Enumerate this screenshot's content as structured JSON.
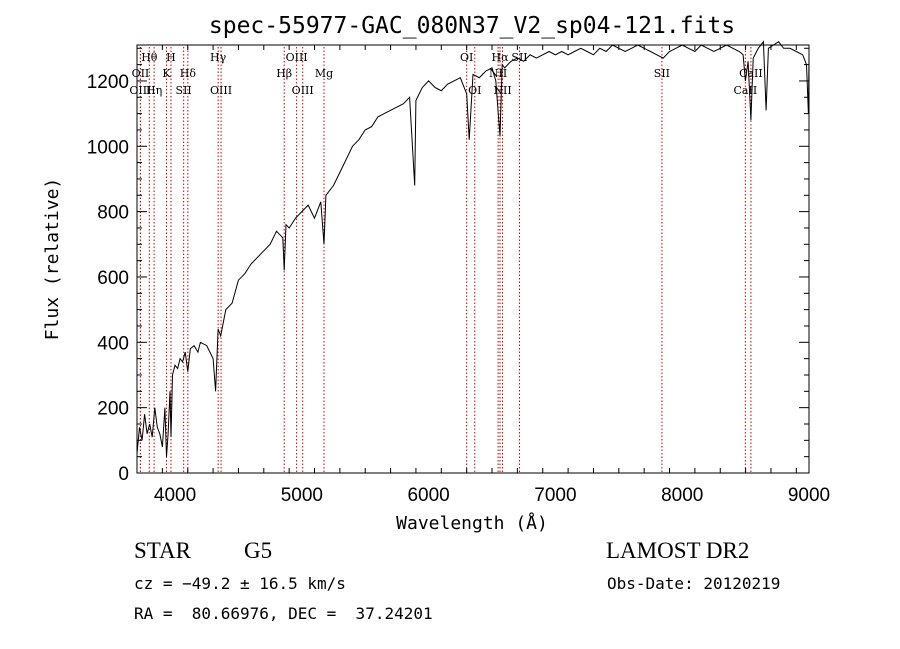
{
  "chart_data": {
    "type": "line",
    "title": "spec-55977-GAC_080N37_V2_sp04-121.fits",
    "xlabel": "Wavelength (Å)",
    "ylabel": "Flux (relative)",
    "xlim": [
      3700,
      9000
    ],
    "ylim": [
      0,
      1310
    ],
    "x_ticks": [
      4000,
      5000,
      6000,
      7000,
      8000,
      9000
    ],
    "y_ticks": [
      0,
      200,
      400,
      600,
      800,
      1000,
      1200
    ],
    "x_minor_step": 200,
    "y_minor_step": 50,
    "grid": false,
    "legend": "none",
    "series": [
      {
        "x": [
          3700,
          3720,
          3740,
          3760,
          3780,
          3800,
          3820,
          3840,
          3860,
          3880,
          3900,
          3920,
          3933,
          3945,
          3960,
          3968,
          3980,
          4000,
          4020,
          4040,
          4060,
          4080,
          4101,
          4120,
          4150,
          4180,
          4200,
          4250,
          4300,
          4320,
          4340,
          4360,
          4400,
          4450,
          4500,
          4550,
          4600,
          4650,
          4700,
          4750,
          4800,
          4850,
          4861,
          4875,
          4900,
          4950,
          5000,
          5050,
          5100,
          5150,
          5175,
          5190,
          5250,
          5300,
          5350,
          5400,
          5450,
          5500,
          5550,
          5600,
          5650,
          5700,
          5750,
          5800,
          5850,
          5890,
          5900,
          5950,
          6000,
          6050,
          6100,
          6150,
          6200,
          6250,
          6300,
          6320,
          6350,
          6400,
          6450,
          6500,
          6530,
          6563,
          6580,
          6600,
          6650,
          6700,
          6750,
          6800,
          6850,
          6900,
          6950,
          7000,
          7050,
          7100,
          7150,
          7200,
          7250,
          7300,
          7350,
          7400,
          7450,
          7500,
          7550,
          7600,
          7650,
          7700,
          7750,
          7800,
          7850,
          7900,
          7950,
          8000,
          8050,
          8100,
          8150,
          8200,
          8250,
          8300,
          8350,
          8400,
          8450,
          8480,
          8498,
          8520,
          8542,
          8560,
          8600,
          8640,
          8662,
          8680,
          8720,
          8760,
          8800,
          8850,
          8900,
          8950,
          8980,
          8995,
          9000
        ],
        "y": [
          60,
          140,
          100,
          180,
          120,
          150,
          110,
          200,
          140,
          120,
          80,
          200,
          50,
          120,
          250,
          110,
          300,
          330,
          320,
          350,
          340,
          370,
          310,
          380,
          390,
          370,
          400,
          390,
          350,
          250,
          440,
          420,
          500,
          520,
          590,
          610,
          640,
          660,
          680,
          700,
          740,
          720,
          620,
          760,
          750,
          780,
          800,
          820,
          780,
          830,
          700,
          850,
          880,
          920,
          960,
          1000,
          1020,
          1050,
          1060,
          1090,
          1100,
          1110,
          1120,
          1130,
          1150,
          880,
          1140,
          1180,
          1200,
          1180,
          1170,
          1190,
          1200,
          1210,
          1160,
          1020,
          1220,
          1210,
          1230,
          1240,
          1200,
          1030,
          1250,
          1240,
          1260,
          1270,
          1260,
          1280,
          1270,
          1280,
          1290,
          1280,
          1290,
          1280,
          1290,
          1300,
          1290,
          1280,
          1300,
          1290,
          1310,
          1300,
          1290,
          1300,
          1310,
          1300,
          1290,
          1280,
          1270,
          1290,
          1300,
          1310,
          1300,
          1290,
          1310,
          1300,
          1290,
          1300,
          1310,
          1300,
          1290,
          1280,
          1200,
          1260,
          1080,
          1270,
          1300,
          1320,
          1110,
          1300,
          1310,
          1320,
          1300,
          1300,
          1290,
          1280,
          1250,
          1100,
          1270
        ]
      }
    ],
    "line_markers": [
      {
        "x": 3797,
        "label": "Hθ",
        "row": 1
      },
      {
        "x": 3835,
        "label": "Hη",
        "row": 3
      },
      {
        "x": 3727,
        "label": "OII",
        "row": 2
      },
      {
        "x": 3727,
        "label": "OIII",
        "row": 3
      },
      {
        "x": 3933,
        "label": "K",
        "row": 2
      },
      {
        "x": 3968,
        "label": "H",
        "row": 1
      },
      {
        "x": 4068,
        "label": "SII",
        "row": 3
      },
      {
        "x": 4101,
        "label": "Hδ",
        "row": 2
      },
      {
        "x": 4340,
        "label": "Hγ",
        "row": 1
      },
      {
        "x": 4363,
        "label": "OIII",
        "row": 3
      },
      {
        "x": 4861,
        "label": "Hβ",
        "row": 2
      },
      {
        "x": 4959,
        "label": "OIII",
        "row": 1
      },
      {
        "x": 5007,
        "label": "OIII",
        "row": 3
      },
      {
        "x": 5175,
        "label": "Mg",
        "row": 2
      },
      {
        "x": 6300,
        "label": "OI",
        "row": 1
      },
      {
        "x": 6364,
        "label": "OI",
        "row": 3
      },
      {
        "x": 6548,
        "label": "NII",
        "row": 2
      },
      {
        "x": 6563,
        "label": "Hα",
        "row": 1
      },
      {
        "x": 6583,
        "label": "NII",
        "row": 3
      },
      {
        "x": 6717,
        "label": "SII",
        "row": 1
      },
      {
        "x": 7840,
        "label": "SII",
        "row": 2
      },
      {
        "x": 8498,
        "label": "CaII",
        "row": 3
      },
      {
        "x": 8542,
        "label": "CaII",
        "row": 2
      }
    ]
  },
  "info": {
    "object_class": "STAR",
    "subclass": "G5",
    "survey": "LAMOST DR2",
    "redshift": "cz = −49.2 ± 16.5 km/s",
    "obs_date": "Obs-Date: 20120219",
    "coords": "RA =  80.66976, DEC =  37.24201"
  },
  "colors": {
    "spectrum": "#000000",
    "line_marker": "#cc0000",
    "background": "#ffffff"
  }
}
